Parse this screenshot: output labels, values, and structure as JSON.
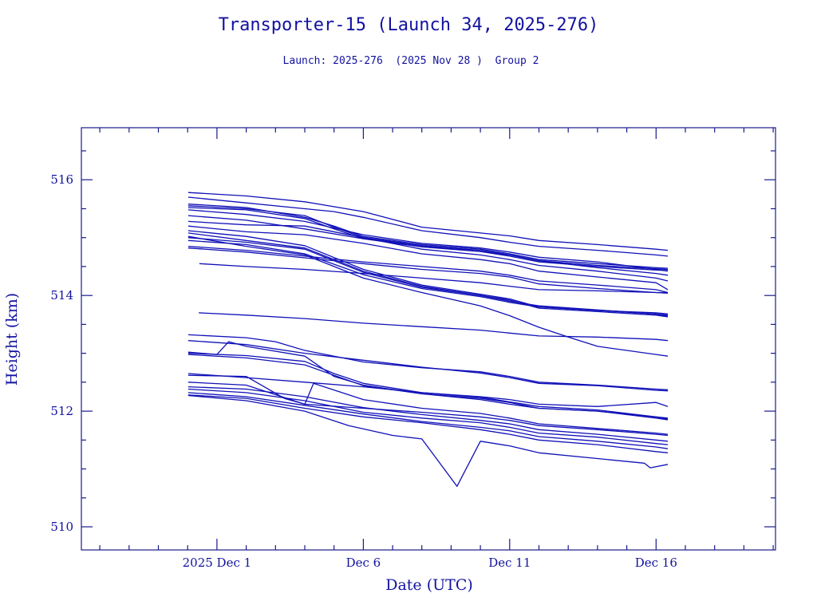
{
  "chart_data": {
    "type": "line",
    "title": "Transporter-15 (Launch 34, 2025-276)",
    "subtitle": "Launch: 2025-276  (2025 Nov 28 )  Group 2",
    "xlabel": "Date (UTC)",
    "ylabel": "Height (km)",
    "x_units": "days since 2025 Dec 1 00:00 UTC",
    "xlim": [
      -4.63,
      19.08
    ],
    "ylim": [
      509.6,
      516.9
    ],
    "x_ticks": [
      {
        "value": 0,
        "label": "2025 Dec  1"
      },
      {
        "value": 5,
        "label": "Dec  6"
      },
      {
        "value": 10,
        "label": "Dec 11"
      },
      {
        "value": 15,
        "label": "Dec 16"
      }
    ],
    "x_minor_step": 1,
    "y_ticks": [
      {
        "value": 510,
        "label": "510"
      },
      {
        "value": 512,
        "label": "512"
      },
      {
        "value": 514,
        "label": "514"
      },
      {
        "value": 516,
        "label": "516"
      }
    ],
    "y_minor_step": 0.5,
    "grid": false,
    "line_color": "#1010b8",
    "frame_color": "#1a1a8c",
    "text_color": "#1212a0",
    "series": [
      {
        "name": "obj-01",
        "x": [
          -0.98,
          1,
          3,
          5,
          7,
          9,
          10,
          11,
          13,
          15,
          15.4
        ],
        "y": [
          515.78,
          515.72,
          515.62,
          515.45,
          515.18,
          515.08,
          515.03,
          514.95,
          514.88,
          514.8,
          514.78
        ]
      },
      {
        "name": "obj-02",
        "x": [
          -0.98,
          1,
          3,
          4,
          5,
          7,
          9,
          10,
          11,
          13,
          15,
          15.4
        ],
        "y": [
          515.7,
          515.6,
          515.5,
          515.45,
          515.35,
          515.12,
          515.0,
          514.92,
          514.85,
          514.78,
          514.7,
          514.68
        ]
      },
      {
        "name": "obj-03",
        "x": [
          -0.98,
          1,
          3,
          4,
          5,
          7,
          9,
          10,
          11,
          13,
          15,
          15.4
        ],
        "y": [
          515.58,
          515.52,
          515.35,
          515.2,
          515.02,
          514.88,
          514.8,
          514.72,
          514.62,
          514.55,
          514.48,
          514.47
        ]
      },
      {
        "name": "obj-04",
        "x": [
          -0.98,
          1,
          3,
          4,
          5,
          7,
          9,
          10,
          11,
          13,
          15,
          15.4
        ],
        "y": [
          515.55,
          515.5,
          515.38,
          515.18,
          515.0,
          514.86,
          514.78,
          514.7,
          514.6,
          514.52,
          514.46,
          514.45
        ]
      },
      {
        "name": "obj-05",
        "x": [
          -0.98,
          1,
          3,
          4,
          5,
          7,
          9,
          10,
          11,
          13,
          15,
          15.4
        ],
        "y": [
          515.52,
          515.48,
          515.33,
          515.15,
          514.98,
          514.84,
          514.76,
          514.68,
          514.58,
          514.5,
          514.44,
          514.43
        ]
      },
      {
        "name": "obj-06",
        "x": [
          -0.98,
          1,
          3,
          5,
          7,
          9,
          10,
          11,
          13,
          15,
          15.4
        ],
        "y": [
          515.48,
          515.4,
          515.28,
          515.05,
          514.9,
          514.82,
          514.75,
          514.66,
          514.58,
          514.45,
          514.42
        ]
      },
      {
        "name": "obj-07",
        "x": [
          -0.98,
          1,
          3,
          5,
          7,
          9,
          10,
          11,
          13,
          15,
          15.4
        ],
        "y": [
          515.38,
          515.3,
          515.15,
          514.98,
          514.86,
          514.76,
          514.7,
          514.6,
          514.48,
          514.38,
          514.35
        ]
      },
      {
        "name": "obj-08",
        "x": [
          -0.98,
          1,
          3,
          5,
          7,
          9,
          10,
          11,
          13,
          15,
          15.4
        ],
        "y": [
          515.28,
          515.22,
          515.2,
          515.0,
          514.8,
          514.7,
          514.62,
          514.52,
          514.42,
          514.3,
          514.25
        ]
      },
      {
        "name": "obj-09",
        "x": [
          -0.98,
          1,
          3,
          5,
          7,
          9,
          10,
          11,
          13,
          15,
          15.4
        ],
        "y": [
          515.2,
          515.1,
          515.05,
          514.9,
          514.72,
          514.62,
          514.55,
          514.42,
          514.32,
          514.22,
          514.1
        ]
      },
      {
        "name": "obj-10",
        "x": [
          -0.98,
          1,
          3,
          5,
          7,
          9,
          10,
          11,
          13,
          15,
          15.4
        ],
        "y": [
          515.12,
          515.02,
          514.86,
          514.45,
          514.18,
          514.02,
          513.94,
          513.8,
          513.74,
          513.68,
          513.66
        ]
      },
      {
        "name": "obj-11",
        "x": [
          -0.98,
          1,
          3,
          5,
          7,
          9,
          10,
          11,
          13,
          15,
          15.4
        ],
        "y": [
          515.08,
          514.95,
          514.82,
          514.42,
          514.16,
          514.0,
          513.92,
          513.78,
          513.72,
          513.66,
          513.63
        ]
      },
      {
        "name": "obj-12",
        "x": [
          -0.98,
          1,
          3,
          5,
          7,
          9,
          10,
          11,
          13,
          15,
          15.4
        ],
        "y": [
          515.0,
          514.92,
          514.8,
          514.4,
          514.14,
          514.0,
          513.9,
          513.82,
          513.75,
          513.68,
          513.64
        ]
      },
      {
        "name": "obj-13",
        "x": [
          -0.98,
          1,
          3,
          5,
          7,
          9,
          10,
          11,
          13,
          15,
          15.4
        ],
        "y": [
          514.95,
          514.88,
          514.72,
          514.36,
          514.12,
          513.98,
          513.88,
          513.8,
          513.74,
          513.7,
          513.68
        ]
      },
      {
        "name": "obj-14",
        "x": [
          -0.98,
          1,
          3,
          5,
          7,
          9,
          10,
          11,
          12,
          13,
          15,
          15.4
        ],
        "y": [
          515.02,
          514.85,
          514.7,
          514.3,
          514.05,
          513.82,
          513.65,
          513.45,
          513.28,
          513.12,
          512.98,
          512.95
        ]
      },
      {
        "name": "obj-15",
        "x": [
          -0.98,
          1,
          3,
          5,
          7,
          9,
          10,
          11,
          13,
          15,
          15.4
        ],
        "y": [
          514.85,
          514.78,
          514.68,
          514.58,
          514.5,
          514.42,
          514.35,
          514.25,
          514.18,
          514.1,
          514.05
        ]
      },
      {
        "name": "obj-16",
        "x": [
          -0.98,
          1,
          3,
          5,
          7,
          9,
          10,
          11,
          13,
          15,
          15.4
        ],
        "y": [
          514.82,
          514.75,
          514.65,
          514.55,
          514.45,
          514.38,
          514.32,
          514.2,
          514.12,
          514.05,
          514.04
        ]
      },
      {
        "name": "obj-17",
        "x": [
          -0.6,
          1,
          3,
          5,
          7,
          9,
          10,
          11,
          13,
          15,
          15.4
        ],
        "y": [
          514.55,
          514.5,
          514.45,
          514.38,
          514.3,
          514.22,
          514.16,
          514.1,
          514.08,
          514.05,
          514.05
        ]
      },
      {
        "name": "obj-18",
        "x": [
          -0.62,
          1,
          3,
          5,
          7,
          9,
          10,
          11,
          13,
          15,
          15.4
        ],
        "y": [
          513.7,
          513.66,
          513.6,
          513.52,
          513.46,
          513.4,
          513.35,
          513.3,
          513.28,
          513.24,
          513.22
        ]
      },
      {
        "name": "obj-19",
        "x": [
          -0.98,
          1,
          2,
          3,
          5,
          7,
          9,
          10,
          11,
          13,
          15,
          15.4
        ],
        "y": [
          513.32,
          513.27,
          513.2,
          513.05,
          512.85,
          512.75,
          512.68,
          512.6,
          512.5,
          512.45,
          512.38,
          512.37
        ]
      },
      {
        "name": "obj-20",
        "x": [
          -0.98,
          1,
          3,
          5,
          7,
          9,
          10,
          11,
          13,
          15,
          15.4
        ],
        "y": [
          513.22,
          513.15,
          513.0,
          512.88,
          512.76,
          512.66,
          512.58,
          512.48,
          512.44,
          512.36,
          512.35
        ]
      },
      {
        "name": "obj-21",
        "x": [
          -0.98,
          0,
          0.4,
          1,
          3,
          4,
          5,
          7,
          9,
          10,
          11,
          13,
          15,
          15.4
        ],
        "y": [
          513.02,
          512.98,
          513.2,
          513.12,
          512.95,
          512.6,
          512.45,
          512.3,
          512.22,
          512.15,
          512.05,
          512.0,
          511.9,
          511.88
        ]
      },
      {
        "name": "obj-22",
        "x": [
          -0.98,
          1,
          3,
          4,
          5,
          7,
          9,
          10,
          11,
          13,
          15,
          15.4
        ],
        "y": [
          513.0,
          512.96,
          512.86,
          512.65,
          512.48,
          512.32,
          512.24,
          512.16,
          512.08,
          512.02,
          511.9,
          511.86
        ]
      },
      {
        "name": "obj-23",
        "x": [
          -0.98,
          1,
          3,
          5,
          7,
          9,
          10,
          11,
          13,
          15,
          15.4
        ],
        "y": [
          512.98,
          512.92,
          512.8,
          512.44,
          512.3,
          512.2,
          512.12,
          512.05,
          512.0,
          511.88,
          511.85
        ]
      },
      {
        "name": "obj-24",
        "x": [
          -0.98,
          1,
          3,
          5,
          7,
          9,
          10,
          11,
          13,
          15,
          15.4
        ],
        "y": [
          512.65,
          512.58,
          512.5,
          512.42,
          512.32,
          512.25,
          512.2,
          512.12,
          512.08,
          512.15,
          512.08
        ]
      },
      {
        "name": "obj-25",
        "x": [
          -0.98,
          1,
          2.3,
          3,
          5,
          7,
          9,
          10,
          11,
          13,
          15,
          15.4
        ],
        "y": [
          512.62,
          512.6,
          512.22,
          512.12,
          512.05,
          511.98,
          511.9,
          511.84,
          511.75,
          511.68,
          511.6,
          511.58
        ]
      },
      {
        "name": "obj-26",
        "x": [
          -0.98,
          1,
          3,
          3.3,
          5,
          7,
          9,
          10,
          11,
          13,
          15,
          15.4
        ],
        "y": [
          512.5,
          512.45,
          512.12,
          512.48,
          512.2,
          512.05,
          511.96,
          511.88,
          511.78,
          511.7,
          511.62,
          511.6
        ]
      },
      {
        "name": "obj-27",
        "x": [
          -0.98,
          1,
          3,
          5,
          7,
          9,
          10,
          11,
          13,
          15,
          15.4
        ],
        "y": [
          512.42,
          512.38,
          512.25,
          512.06,
          511.94,
          511.84,
          511.78,
          511.68,
          511.6,
          511.5,
          511.48
        ]
      },
      {
        "name": "obj-28",
        "x": [
          -0.98,
          1,
          3,
          5,
          7,
          9,
          10,
          11,
          13,
          15,
          15.4
        ],
        "y": [
          512.38,
          512.32,
          512.18,
          511.98,
          511.88,
          511.8,
          511.72,
          511.62,
          511.55,
          511.44,
          511.42
        ]
      },
      {
        "name": "obj-29",
        "x": [
          -0.98,
          1,
          3,
          5,
          7,
          9,
          10,
          11,
          13,
          15,
          15.4
        ],
        "y": [
          512.32,
          512.25,
          512.1,
          511.95,
          511.82,
          511.72,
          511.66,
          511.56,
          511.48,
          511.38,
          511.35
        ]
      },
      {
        "name": "obj-30",
        "x": [
          -0.98,
          1,
          3,
          5,
          7,
          9,
          10,
          11,
          13,
          15,
          15.4
        ],
        "y": [
          512.28,
          512.22,
          512.05,
          511.9,
          511.8,
          511.68,
          511.6,
          511.5,
          511.42,
          511.3,
          511.28
        ]
      },
      {
        "name": "obj-31",
        "x": [
          -0.98,
          1,
          3,
          4.5,
          6,
          7,
          8.2,
          9,
          10,
          11,
          13,
          14.6,
          14.8,
          15.4
        ],
        "y": [
          512.27,
          512.18,
          512.0,
          511.75,
          511.58,
          511.52,
          510.7,
          511.48,
          511.4,
          511.28,
          511.18,
          511.1,
          511.02,
          511.08
        ]
      }
    ]
  }
}
